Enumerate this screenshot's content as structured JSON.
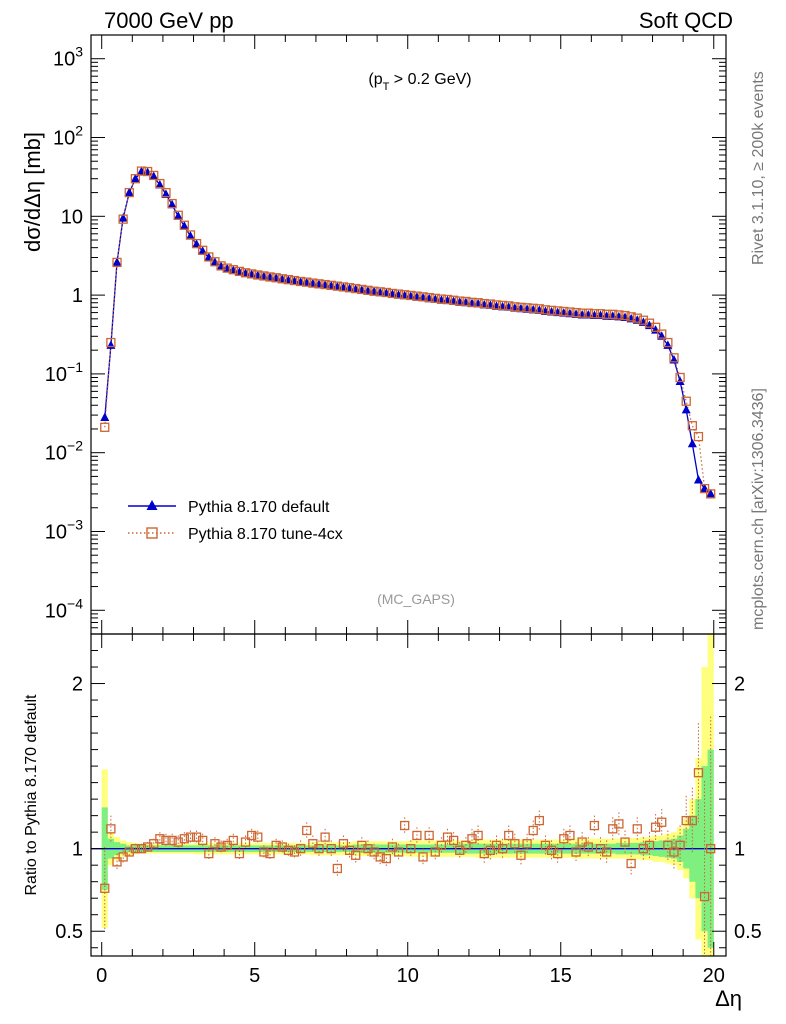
{
  "header": {
    "left": "7000 GeV pp",
    "right": "Soft QCD"
  },
  "side_labels": {
    "rivet": "Rivet 3.1.10, ≥ 200k events",
    "mcplots": "mcplots.cern.ch [arXiv:1306.3436]"
  },
  "annotation": {
    "cut_prefix": "(p",
    "cut_sub": "T",
    "cut_suffix": " > 0.2 GeV)",
    "analysis": "(MC_GAPS)"
  },
  "colors": {
    "default": "#0000cc",
    "tune": "#cc6633",
    "band_inner": "#7fef7f",
    "band_outer": "#ffff7f"
  },
  "chart_data": [
    {
      "type": "line",
      "name": "main",
      "ylabel": "dσ/dΔη [mb]",
      "yscale": "log",
      "ylim": [
        5e-05,
        2000
      ],
      "xlim": [
        -0.35,
        20.4
      ],
      "yticks": [
        {
          "v": 1000,
          "base": "10",
          "exp": "3"
        },
        {
          "v": 100,
          "base": "10",
          "exp": "2"
        },
        {
          "v": 10,
          "base": "10",
          "exp": ""
        },
        {
          "v": 1,
          "base": "1",
          "exp": ""
        },
        {
          "v": 0.1,
          "base": "10",
          "exp": "−1"
        },
        {
          "v": 0.01,
          "base": "10",
          "exp": "−2"
        },
        {
          "v": 0.001,
          "base": "10",
          "exp": "−3"
        },
        {
          "v": 0.0001,
          "base": "10",
          "exp": "−4"
        }
      ],
      "legend": {
        "position": "lower-left",
        "entries": [
          "Pythia 8.170 default",
          "Pythia 8.170 tune-4cx"
        ]
      },
      "x": [
        0.1,
        0.3,
        0.5,
        0.7,
        0.9,
        1.1,
        1.3,
        1.5,
        1.7,
        1.9,
        2.1,
        2.3,
        2.5,
        2.7,
        2.9,
        3.1,
        3.3,
        3.5,
        3.7,
        3.9,
        4.1,
        4.3,
        4.5,
        4.7,
        4.9,
        5.1,
        5.3,
        5.5,
        5.7,
        5.9,
        6.1,
        6.3,
        6.5,
        6.7,
        6.9,
        7.1,
        7.3,
        7.5,
        7.7,
        7.9,
        8.1,
        8.3,
        8.5,
        8.7,
        8.9,
        9.1,
        9.3,
        9.5,
        9.7,
        9.9,
        10.1,
        10.3,
        10.5,
        10.7,
        10.9,
        11.1,
        11.3,
        11.5,
        11.7,
        11.9,
        12.1,
        12.3,
        12.5,
        12.7,
        12.9,
        13.1,
        13.3,
        13.5,
        13.7,
        13.9,
        14.1,
        14.3,
        14.5,
        14.7,
        14.9,
        15.1,
        15.3,
        15.5,
        15.7,
        15.9,
        16.1,
        16.3,
        16.5,
        16.7,
        16.9,
        17.1,
        17.3,
        17.5,
        17.7,
        17.9,
        18.1,
        18.3,
        18.5,
        18.7,
        18.9,
        19.1,
        19.3,
        19.5,
        19.7,
        19.9
      ],
      "series": [
        {
          "name": "Pythia 8.170 default",
          "values": [
            0.028,
            0.23,
            2.6,
            9.5,
            20,
            30,
            37,
            36,
            32,
            25,
            19,
            14,
            10,
            7.5,
            5.6,
            4.4,
            3.6,
            3.0,
            2.6,
            2.3,
            2.15,
            2.05,
            1.95,
            1.88,
            1.82,
            1.76,
            1.71,
            1.67,
            1.63,
            1.58,
            1.54,
            1.5,
            1.46,
            1.43,
            1.39,
            1.36,
            1.33,
            1.3,
            1.27,
            1.24,
            1.21,
            1.18,
            1.15,
            1.12,
            1.1,
            1.07,
            1.05,
            1.02,
            1.0,
            0.98,
            0.96,
            0.94,
            0.92,
            0.9,
            0.88,
            0.86,
            0.85,
            0.83,
            0.81,
            0.8,
            0.78,
            0.77,
            0.75,
            0.74,
            0.72,
            0.71,
            0.7,
            0.68,
            0.67,
            0.66,
            0.65,
            0.64,
            0.62,
            0.61,
            0.6,
            0.59,
            0.58,
            0.57,
            0.56,
            0.56,
            0.55,
            0.55,
            0.54,
            0.54,
            0.53,
            0.52,
            0.5,
            0.48,
            0.45,
            0.41,
            0.36,
            0.3,
            0.23,
            0.15,
            0.08,
            0.035,
            0.013,
            0.0045,
            0.0035,
            0.003
          ]
        },
        {
          "name": "Pythia 8.170 tune-4cx",
          "values": [
            0.021,
            0.25,
            2.6,
            9.2,
            20,
            30,
            37.5,
            37,
            33,
            26,
            20,
            14.5,
            10.3,
            7.7,
            5.8,
            4.5,
            3.7,
            3.05,
            2.65,
            2.35,
            2.2,
            2.1,
            2.0,
            1.92,
            1.86,
            1.8,
            1.75,
            1.7,
            1.66,
            1.61,
            1.57,
            1.53,
            1.49,
            1.46,
            1.42,
            1.39,
            1.36,
            1.33,
            1.3,
            1.27,
            1.24,
            1.21,
            1.18,
            1.15,
            1.12,
            1.1,
            1.08,
            1.05,
            1.03,
            1.01,
            0.99,
            0.97,
            0.95,
            0.93,
            0.91,
            0.89,
            0.88,
            0.86,
            0.84,
            0.83,
            0.81,
            0.8,
            0.78,
            0.77,
            0.75,
            0.74,
            0.73,
            0.71,
            0.7,
            0.69,
            0.68,
            0.67,
            0.65,
            0.64,
            0.63,
            0.62,
            0.61,
            0.6,
            0.59,
            0.59,
            0.58,
            0.58,
            0.57,
            0.57,
            0.56,
            0.55,
            0.53,
            0.51,
            0.48,
            0.44,
            0.39,
            0.32,
            0.25,
            0.16,
            0.09,
            0.045,
            0.022,
            0.016,
            0.0035,
            0.003
          ]
        }
      ]
    },
    {
      "type": "line",
      "name": "ratio",
      "ylabel": "Ratio to Pythia 8.170 default",
      "xlabel": "Δη",
      "ylim": [
        0.35,
        2.3
      ],
      "xlim": [
        -0.35,
        20.4
      ],
      "yticks": [
        {
          "v": 0.5,
          "label": "0.5"
        },
        {
          "v": 1,
          "label": "1"
        },
        {
          "v": 2,
          "label": "2"
        }
      ],
      "xticks": [
        {
          "v": 0,
          "label": "0"
        },
        {
          "v": 5,
          "label": "5"
        },
        {
          "v": 10,
          "label": "10"
        },
        {
          "v": 15,
          "label": "15"
        },
        {
          "v": 20,
          "label": "20"
        }
      ],
      "band": {
        "inner": [
          0.25,
          0.06,
          0.04,
          0.03,
          0.02,
          0.02,
          0.02,
          0.02,
          0.02,
          0.02,
          0.02,
          0.02,
          0.02,
          0.02,
          0.02,
          0.02,
          0.02,
          0.02,
          0.02,
          0.02,
          0.02,
          0.02,
          0.02,
          0.02,
          0.02,
          0.02,
          0.02,
          0.02,
          0.02,
          0.02,
          0.02,
          0.02,
          0.02,
          0.02,
          0.02,
          0.02,
          0.02,
          0.02,
          0.02,
          0.02,
          0.02,
          0.025,
          0.025,
          0.025,
          0.025,
          0.025,
          0.025,
          0.025,
          0.025,
          0.025,
          0.025,
          0.025,
          0.025,
          0.025,
          0.025,
          0.025,
          0.025,
          0.025,
          0.03,
          0.03,
          0.03,
          0.03,
          0.03,
          0.03,
          0.03,
          0.03,
          0.03,
          0.03,
          0.03,
          0.03,
          0.03,
          0.03,
          0.03,
          0.03,
          0.03,
          0.03,
          0.03,
          0.03,
          0.03,
          0.03,
          0.03,
          0.03,
          0.03,
          0.03,
          0.035,
          0.035,
          0.035,
          0.035,
          0.04,
          0.04,
          0.045,
          0.05,
          0.055,
          0.06,
          0.08,
          0.12,
          0.2,
          0.3,
          0.5,
          0.6
        ],
        "outer": [
          0.48,
          0.1,
          0.07,
          0.05,
          0.04,
          0.035,
          0.03,
          0.03,
          0.03,
          0.03,
          0.03,
          0.03,
          0.03,
          0.03,
          0.03,
          0.035,
          0.035,
          0.035,
          0.035,
          0.035,
          0.035,
          0.035,
          0.035,
          0.035,
          0.035,
          0.035,
          0.035,
          0.035,
          0.035,
          0.035,
          0.035,
          0.035,
          0.035,
          0.035,
          0.04,
          0.04,
          0.04,
          0.04,
          0.04,
          0.04,
          0.04,
          0.045,
          0.045,
          0.045,
          0.045,
          0.045,
          0.045,
          0.045,
          0.045,
          0.045,
          0.05,
          0.05,
          0.05,
          0.05,
          0.05,
          0.05,
          0.05,
          0.05,
          0.05,
          0.05,
          0.05,
          0.055,
          0.055,
          0.055,
          0.055,
          0.055,
          0.055,
          0.055,
          0.055,
          0.055,
          0.055,
          0.055,
          0.055,
          0.055,
          0.055,
          0.055,
          0.055,
          0.06,
          0.06,
          0.06,
          0.06,
          0.06,
          0.06,
          0.06,
          0.06,
          0.06,
          0.065,
          0.065,
          0.07,
          0.07,
          0.08,
          0.08,
          0.09,
          0.1,
          0.13,
          0.18,
          0.3,
          0.55,
          1.1,
          1.3
        ]
      },
      "values": [
        0.76,
        1.12,
        0.92,
        0.95,
        0.98,
        1.0,
        1.0,
        1.01,
        1.03,
        1.06,
        1.05,
        1.05,
        1.04,
        1.06,
        1.07,
        1.07,
        1.05,
        0.97,
        1.03,
        1.01,
        1.02,
        1.05,
        0.97,
        1.04,
        1.08,
        1.07,
        0.98,
        0.97,
        1.02,
        1.01,
        0.99,
        0.98,
        1.0,
        1.11,
        1.03,
        1.0,
        1.07,
        1.0,
        0.88,
        1.03,
        0.99,
        0.96,
        1.02,
        1.0,
        0.98,
        0.95,
        0.94,
        1.01,
        0.98,
        1.14,
        1.0,
        1.08,
        0.95,
        1.08,
        0.98,
        1.02,
        1.07,
        1.05,
        0.99,
        1.02,
        1.06,
        1.08,
        0.97,
        0.99,
        1.02,
        1.0,
        1.08,
        1.03,
        0.96,
        1.03,
        1.11,
        1.17,
        1.02,
        0.99,
        0.97,
        1.06,
        1.08,
        0.98,
        1.04,
        1.01,
        1.14,
        1.0,
        0.98,
        1.12,
        1.15,
        1.04,
        0.91,
        1.12,
        1.0,
        1.02,
        1.13,
        1.16,
        1.02,
        0.98,
        1.02,
        1.17,
        1.17,
        1.46,
        0.71,
        1.0
      ],
      "errors": [
        0.25,
        0.08,
        0.05,
        0.04,
        0.03,
        0.03,
        0.03,
        0.03,
        0.03,
        0.04,
        0.04,
        0.04,
        0.04,
        0.04,
        0.04,
        0.04,
        0.04,
        0.04,
        0.04,
        0.04,
        0.04,
        0.04,
        0.04,
        0.04,
        0.04,
        0.04,
        0.04,
        0.04,
        0.04,
        0.04,
        0.04,
        0.04,
        0.05,
        0.05,
        0.05,
        0.05,
        0.05,
        0.05,
        0.05,
        0.05,
        0.05,
        0.05,
        0.05,
        0.05,
        0.05,
        0.05,
        0.05,
        0.05,
        0.05,
        0.05,
        0.05,
        0.05,
        0.05,
        0.05,
        0.05,
        0.05,
        0.05,
        0.05,
        0.05,
        0.05,
        0.06,
        0.06,
        0.06,
        0.06,
        0.06,
        0.06,
        0.06,
        0.06,
        0.06,
        0.06,
        0.06,
        0.06,
        0.06,
        0.06,
        0.06,
        0.06,
        0.06,
        0.06,
        0.06,
        0.06,
        0.06,
        0.07,
        0.07,
        0.07,
        0.07,
        0.07,
        0.07,
        0.07,
        0.07,
        0.08,
        0.08,
        0.08,
        0.09,
        0.1,
        0.12,
        0.15,
        0.2,
        0.3,
        0.7,
        0.8
      ]
    }
  ]
}
